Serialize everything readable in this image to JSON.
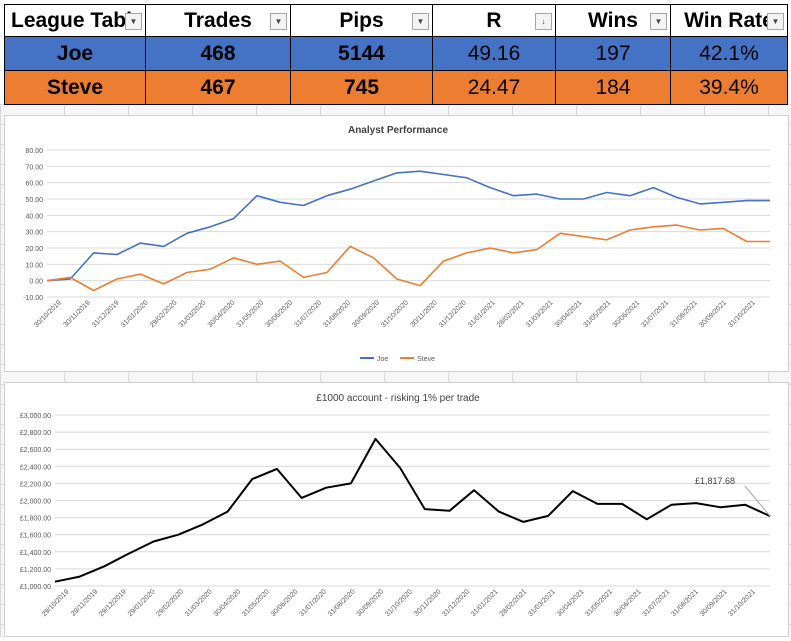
{
  "table": {
    "headers": [
      "League Tabl",
      "Trades",
      "Pips",
      "R",
      "Wins",
      "Win Rate"
    ],
    "rows": [
      {
        "name": "Joe",
        "trades": "468",
        "pips": "5144",
        "r": "49.16",
        "wins": "197",
        "win_rate": "42.1%"
      },
      {
        "name": "Steve",
        "trades": "467",
        "pips": "745",
        "r": "24.47",
        "wins": "184",
        "win_rate": "39.4%"
      }
    ],
    "colors": {
      "joe": "#4472c4",
      "steve": "#ed7d31"
    }
  },
  "chart_data": [
    {
      "type": "line",
      "title": "Analyst Performance",
      "ylim": [
        -10,
        80
      ],
      "y_ticks": [
        "-10.00",
        "0.00",
        "10.00",
        "20.00",
        "30.00",
        "40.00",
        "50.00",
        "60.00",
        "70.00",
        "80.00"
      ],
      "x_ticks": [
        "30/10/2019",
        "30/11/2019",
        "31/12/2019",
        "31/01/2020",
        "29/02/2020",
        "31/03/2020",
        "30/04/2020",
        "31/05/2020",
        "30/06/2020",
        "31/07/2020",
        "31/08/2020",
        "30/09/2020",
        "31/10/2020",
        "30/11/2020",
        "31/12/2020",
        "31/01/2021",
        "28/02/2021",
        "31/03/2021",
        "30/04/2021",
        "31/05/2021",
        "30/06/2021",
        "31/07/2021",
        "31/08/2021",
        "30/09/2021",
        "31/10/2021"
      ],
      "grid": true,
      "legend": "bottom",
      "series": [
        {
          "name": "Joe",
          "color": "#4472c4",
          "values": [
            0,
            1,
            17,
            16,
            23,
            21,
            29,
            33,
            38,
            52,
            48,
            46,
            52,
            56,
            61,
            66,
            67,
            65,
            63,
            57,
            52,
            53,
            50,
            50,
            54,
            52,
            57,
            51,
            47,
            48,
            49,
            49
          ]
        },
        {
          "name": "Steve",
          "color": "#ed7d31",
          "values": [
            0,
            2,
            -6,
            1,
            4,
            -2,
            5,
            7,
            14,
            10,
            12,
            2,
            5,
            21,
            14,
            1,
            -3,
            12,
            17,
            20,
            17,
            19,
            29,
            27,
            25,
            31,
            33,
            34,
            31,
            32,
            24,
            24
          ]
        }
      ]
    },
    {
      "type": "line",
      "title": "£1000 account - risking 1% per trade",
      "ylim": [
        1000,
        3000
      ],
      "y_ticks": [
        "£1,000.00",
        "£1,200.00",
        "£1,400.00",
        "£1,600.00",
        "£1,800.00",
        "£2,000.00",
        "£2,200.00",
        "£2,400.00",
        "£2,600.00",
        "£2,800.00",
        "£3,000.00"
      ],
      "x_ticks": [
        "29/10/2019",
        "29/11/2019",
        "29/12/2019",
        "29/01/2020",
        "29/02/2020",
        "31/03/2020",
        "30/04/2020",
        "31/05/2020",
        "30/06/2020",
        "31/07/2020",
        "31/08/2020",
        "30/09/2020",
        "31/10/2020",
        "30/11/2020",
        "31/12/2020",
        "31/01/2021",
        "28/02/2021",
        "31/03/2021",
        "30/04/2021",
        "31/05/2021",
        "30/06/2021",
        "31/07/2021",
        "31/08/2021",
        "30/09/2021",
        "31/10/2021"
      ],
      "grid": true,
      "series": [
        {
          "color": "#000000",
          "values": [
            1050,
            1110,
            1230,
            1380,
            1520,
            1600,
            1720,
            1870,
            2250,
            2370,
            2030,
            2150,
            2200,
            2720,
            2380,
            1900,
            1880,
            2120,
            1870,
            1750,
            1820,
            2110,
            1960,
            1960,
            1780,
            1950,
            1970,
            1920,
            1950,
            1817.68
          ]
        }
      ],
      "last_value_label": "£1,817.68"
    }
  ]
}
